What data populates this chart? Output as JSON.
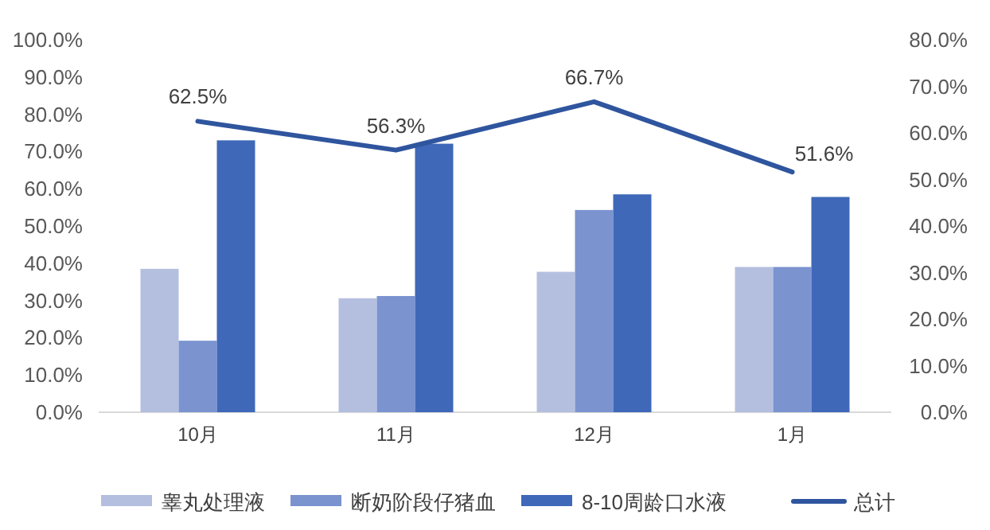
{
  "chart_data": {
    "type": "bar",
    "categories": [
      "10月",
      "11月",
      "12月",
      "1月"
    ],
    "series": [
      {
        "name": "睾丸处理液",
        "color": "#b4bfe0",
        "values": [
          38.5,
          30.6,
          37.7,
          39.0
        ]
      },
      {
        "name": "断奶阶段仔猪血",
        "color": "#7b93cf",
        "values": [
          19.2,
          31.2,
          54.3,
          39.0
        ]
      },
      {
        "name": "8-10周龄口水液",
        "color": "#3f68b8",
        "values": [
          73.0,
          72.1,
          58.5,
          57.8
        ]
      },
      {
        "name": "总计",
        "type": "line",
        "axis": "y2",
        "color": "#2f559e",
        "values": [
          62.5,
          56.3,
          66.7,
          51.6
        ],
        "value_labels": [
          "62.5%",
          "56.3%",
          "66.7%",
          "51.6%"
        ]
      }
    ],
    "ylim": [
      0,
      100
    ],
    "yticks": [
      {
        "value": 0,
        "label": "0.0%"
      },
      {
        "value": 10,
        "label": "10.0%"
      },
      {
        "value": 20,
        "label": "20.0%"
      },
      {
        "value": 30,
        "label": "30.0%"
      },
      {
        "value": 40,
        "label": "40.0%"
      },
      {
        "value": 50,
        "label": "50.0%"
      },
      {
        "value": 60,
        "label": "60.0%"
      },
      {
        "value": 70,
        "label": "70.0%"
      },
      {
        "value": 80,
        "label": "80.0%"
      },
      {
        "value": 90,
        "label": "90.0%"
      },
      {
        "value": 100,
        "label": "100.0%"
      }
    ],
    "y2lim": [
      0,
      80
    ],
    "y2ticks": [
      {
        "value": 0,
        "label": "0.0%"
      },
      {
        "value": 10,
        "label": "10.0%"
      },
      {
        "value": 20,
        "label": "20.0%"
      },
      {
        "value": 30,
        "label": "30.0%"
      },
      {
        "value": 40,
        "label": "40.0%"
      },
      {
        "value": 50,
        "label": "50.0%"
      },
      {
        "value": 60,
        "label": "60.0%"
      },
      {
        "value": 70,
        "label": "70.0%"
      },
      {
        "value": 80,
        "label": "80.0%"
      }
    ],
    "legend": "bottom"
  }
}
